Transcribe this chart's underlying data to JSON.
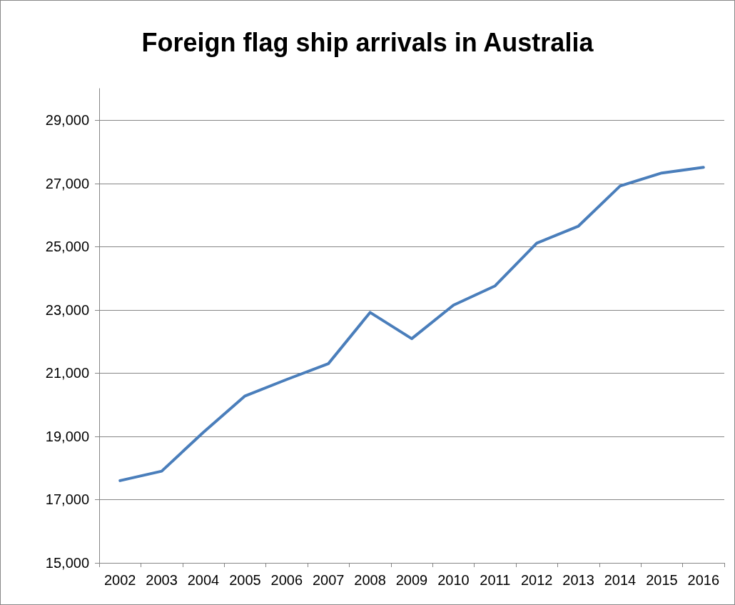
{
  "chart_data": {
    "type": "line",
    "title": "Foreign flag ship arrivals in Australia",
    "categories": [
      "2002",
      "2003",
      "2004",
      "2005",
      "2006",
      "2007",
      "2008",
      "2009",
      "2010",
      "2011",
      "2012",
      "2013",
      "2014",
      "2015",
      "2016"
    ],
    "series": [
      {
        "color": "#4a7ebb",
        "values": [
          17600,
          17900,
          19130,
          20280,
          20800,
          21300,
          22920,
          22090,
          23150,
          23760,
          25110,
          25650,
          26920,
          27330,
          27510
        ]
      }
    ],
    "ylim": [
      15000,
      30000
    ],
    "yticks": [
      {
        "value": 15000,
        "label": "15,000"
      },
      {
        "value": 17000,
        "label": "17,000"
      },
      {
        "value": 19000,
        "label": "19,000"
      },
      {
        "value": 21000,
        "label": "21,000"
      },
      {
        "value": 23000,
        "label": "23,000"
      },
      {
        "value": 25000,
        "label": "25,000"
      },
      {
        "value": 27000,
        "label": "27,000"
      },
      {
        "value": 29000,
        "label": "29,000"
      }
    ],
    "grid": "y",
    "marker": "none",
    "line_style": "solid"
  }
}
